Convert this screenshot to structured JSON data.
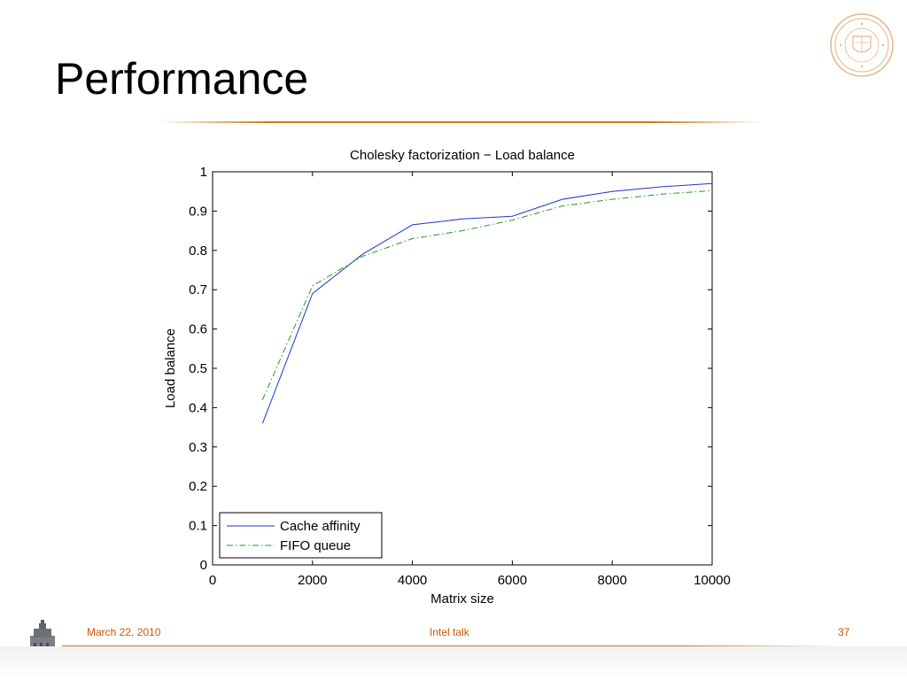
{
  "slide": {
    "title": "Performance"
  },
  "footer": {
    "date": "March 22, 2010",
    "center": "Intel talk",
    "page": "37"
  },
  "colors": {
    "accent": "#cc5500",
    "series_cache": "#2233cc",
    "series_fifo": "#229922"
  },
  "icons": {
    "seal": "university-seal-icon",
    "tower": "tower-icon"
  },
  "chart_data": {
    "type": "line",
    "title": "Cholesky factorization − Load balance",
    "xlabel": "Matrix size",
    "ylabel": "Load balance",
    "xlim": [
      0,
      10000
    ],
    "ylim": [
      0,
      1
    ],
    "xticks": [
      "0",
      "2000",
      "4000",
      "6000",
      "8000",
      "10000"
    ],
    "yticks": [
      "0",
      "0.1",
      "0.2",
      "0.3",
      "0.4",
      "0.5",
      "0.6",
      "0.7",
      "0.8",
      "0.9",
      "1"
    ],
    "legend_position": "bottom-left",
    "grid": false,
    "x": [
      1000,
      2000,
      3000,
      4000,
      5000,
      6000,
      7000,
      8000,
      9000,
      10000
    ],
    "series": [
      {
        "name": "Cache affinity",
        "style": "solid",
        "values": [
          0.36,
          0.69,
          0.79,
          0.865,
          0.88,
          0.887,
          0.93,
          0.95,
          0.962,
          0.97
        ]
      },
      {
        "name": "FIFO queue",
        "style": "dash-dot",
        "values": [
          0.42,
          0.71,
          0.785,
          0.83,
          0.85,
          0.877,
          0.913,
          0.93,
          0.943,
          0.952
        ]
      }
    ]
  }
}
